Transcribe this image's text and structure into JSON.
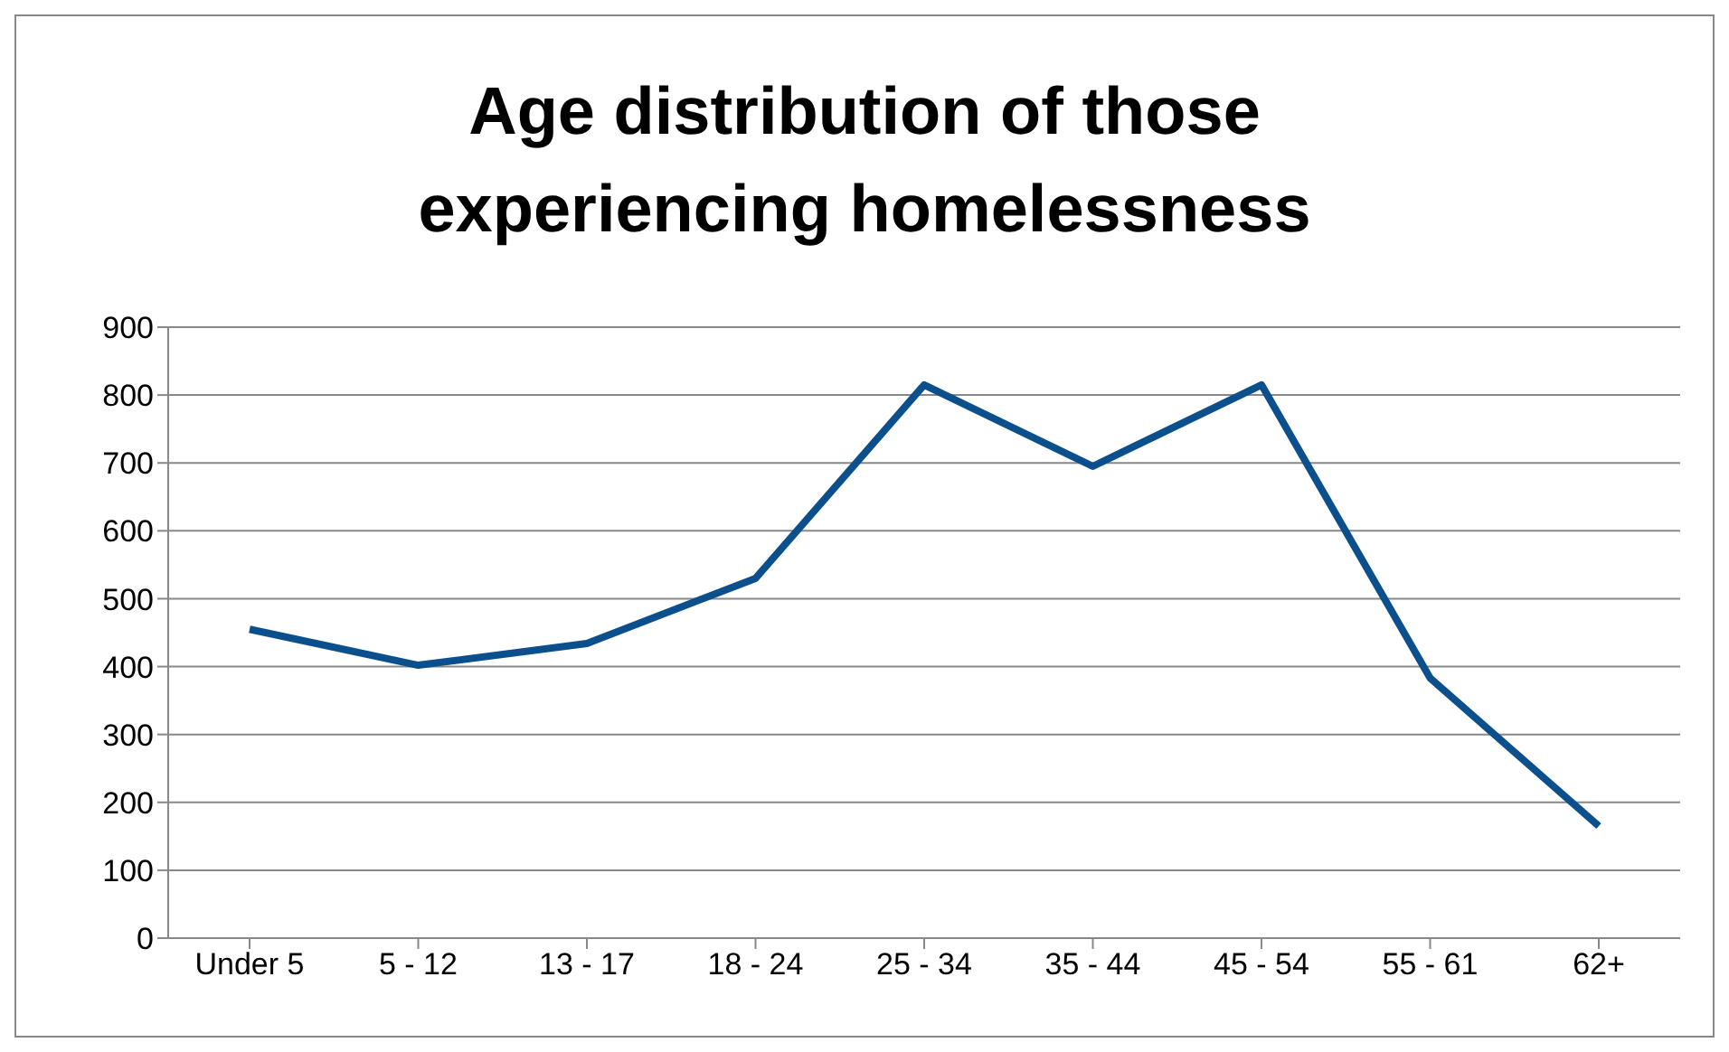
{
  "chart_data": {
    "type": "line",
    "title": "Age distribution of those experiencing homelessness",
    "categories": [
      "Under 5",
      "5 - 12",
      "13 - 17",
      "18 - 24",
      "25 - 34",
      "35 - 44",
      "45 - 54",
      "55 - 61",
      "62+"
    ],
    "series": [
      {
        "color": "#0b4f8c",
        "values": [
          455,
          402,
          434,
          530,
          815,
          695,
          815,
          383,
          165
        ]
      }
    ],
    "ylim": [
      0,
      900
    ],
    "yticks": [
      0,
      100,
      200,
      300,
      400,
      500,
      600,
      700,
      800,
      900
    ],
    "grid": "y"
  }
}
